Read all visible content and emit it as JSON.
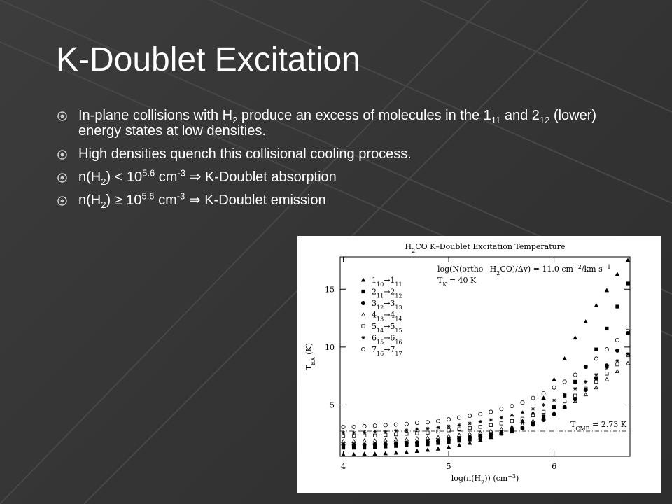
{
  "slide": {
    "title": "K-Doublet Excitation",
    "bullets": [
      [
        {
          "text": "In-plane collisions with H"
        },
        {
          "text": "2",
          "style": "sub"
        },
        {
          "text": " produce an excess of molecules in the 1"
        },
        {
          "text": "11",
          "style": "sub"
        },
        {
          "text": " and 2"
        },
        {
          "text": "12",
          "style": "sub"
        },
        {
          "text": " (lower) energy states at low densities."
        }
      ],
      [
        {
          "text": "High densities quench this collisional cooling process."
        }
      ],
      [
        {
          "text": "n(H"
        },
        {
          "text": "2",
          "style": "sub"
        },
        {
          "text": ") < 10"
        },
        {
          "text": "5.6",
          "style": "sup"
        },
        {
          "text": " cm"
        },
        {
          "text": "-3",
          "style": "sup"
        },
        {
          "text": " ⇒ K-Doublet absorption"
        }
      ],
      [
        {
          "text": "n(H"
        },
        {
          "text": "2",
          "style": "sub"
        },
        {
          "text": ") ≥ 10"
        },
        {
          "text": "5.6",
          "style": "sup"
        },
        {
          "text": " cm"
        },
        {
          "text": "-3",
          "style": "sup"
        },
        {
          "text": " ⇒ K-Doublet emission"
        }
      ]
    ]
  },
  "chart_data": {
    "type": "scatter",
    "title": [
      {
        "text": "H"
      },
      {
        "text": "2",
        "style": "sub"
      },
      {
        "text": "CO K–Doublet Excitation Temperature"
      }
    ],
    "annotations": [
      [
        {
          "text": "log(N(ortho−H"
        },
        {
          "text": "2",
          "style": "sub"
        },
        {
          "text": "CO)/Δv) = 11.0 cm"
        },
        {
          "text": "−2",
          "style": "sup"
        },
        {
          "text": "/km s"
        },
        {
          "text": "−1",
          "style": "sup"
        }
      ],
      [
        {
          "text": "T"
        },
        {
          "text": "K",
          "style": "sub"
        },
        {
          "text": " = 40 K"
        }
      ]
    ],
    "reference_line": {
      "value": 2.73,
      "label": [
        {
          "text": "T"
        },
        {
          "text": "CMB",
          "style": "sub"
        },
        {
          "text": " = 2.73 K"
        }
      ]
    },
    "xlabel": [
      {
        "text": "log(n(H"
      },
      {
        "text": "2",
        "style": "sub"
      },
      {
        "text": ")) (cm"
      },
      {
        "text": "−3",
        "style": "sup"
      },
      {
        "text": ")"
      }
    ],
    "ylabel": [
      {
        "text": "T"
      },
      {
        "text": "EX",
        "style": "sub"
      },
      {
        "text": " (K)"
      }
    ],
    "xlim": [
      3.97,
      6.72
    ],
    "ylim": [
      0.55,
      17.8
    ],
    "xticks": [
      4,
      5,
      6
    ],
    "yticks": [
      5,
      10,
      15
    ],
    "x": [
      4.0,
      4.1,
      4.2,
      4.3,
      4.4,
      4.5,
      4.6,
      4.7,
      4.8,
      4.9,
      5.0,
      5.1,
      5.2,
      5.3,
      5.4,
      5.5,
      5.6,
      5.7,
      5.8,
      5.9,
      6.0,
      6.1,
      6.2,
      6.3,
      6.4,
      6.5,
      6.6,
      6.7
    ],
    "series": [
      {
        "name": [
          {
            "text": "1"
          },
          {
            "text": "10",
            "style": "sub"
          },
          {
            "text": "→1"
          },
          {
            "text": "11",
            "style": "sub"
          }
        ],
        "marker": "triangle-filled",
        "color": "#000000",
        "values": [
          0.7,
          0.7,
          0.75,
          0.75,
          0.8,
          0.85,
          0.9,
          1.0,
          1.1,
          1.2,
          1.35,
          1.5,
          1.7,
          1.95,
          2.2,
          2.6,
          3.0,
          3.6,
          4.3,
          5.6,
          7.2,
          9.0,
          10.8,
          12.2,
          13.6,
          14.9,
          16.3,
          17.5
        ]
      },
      {
        "name": [
          {
            "text": "2"
          },
          {
            "text": "11",
            "style": "sub"
          },
          {
            "text": "→2"
          },
          {
            "text": "12",
            "style": "sub"
          }
        ],
        "marker": "square-filled",
        "color": "#000000",
        "values": [
          1.3,
          1.3,
          1.3,
          1.35,
          1.4,
          1.45,
          1.5,
          1.55,
          1.6,
          1.7,
          1.8,
          1.9,
          2.0,
          2.15,
          2.3,
          2.5,
          2.7,
          3.0,
          3.4,
          4.0,
          4.8,
          5.8,
          7.0,
          8.3,
          9.8,
          11.6,
          13.5,
          15.5
        ]
      },
      {
        "name": [
          {
            "text": "3"
          },
          {
            "text": "12",
            "style": "sub"
          },
          {
            "text": "→3"
          },
          {
            "text": "13",
            "style": "sub"
          }
        ],
        "marker": "circle-filled",
        "color": "#000000",
        "values": [
          1.55,
          1.55,
          1.55,
          1.6,
          1.6,
          1.65,
          1.7,
          1.75,
          1.8,
          1.9,
          2.0,
          2.1,
          2.2,
          2.3,
          2.45,
          2.6,
          2.8,
          3.0,
          3.3,
          3.7,
          4.2,
          4.8,
          5.5,
          6.3,
          7.3,
          8.4,
          9.7,
          11.2
        ]
      },
      {
        "name": [
          {
            "text": "4"
          },
          {
            "text": "13",
            "style": "sub"
          },
          {
            "text": "→4"
          },
          {
            "text": "14",
            "style": "sub"
          }
        ],
        "marker": "triangle-open",
        "color": "#000000",
        "values": [
          1.85,
          1.85,
          1.9,
          1.9,
          1.95,
          2.0,
          2.0,
          2.1,
          2.15,
          2.2,
          2.3,
          2.4,
          2.5,
          2.6,
          2.75,
          2.9,
          3.1,
          3.3,
          3.6,
          3.9,
          4.3,
          4.8,
          5.3,
          5.9,
          6.5,
          7.2,
          7.9,
          8.6
        ]
      },
      {
        "name": [
          {
            "text": "5"
          },
          {
            "text": "14",
            "style": "sub"
          },
          {
            "text": "→5"
          },
          {
            "text": "15",
            "style": "sub"
          }
        ],
        "marker": "square-open",
        "color": "#000000",
        "values": [
          2.3,
          2.3,
          2.35,
          2.35,
          2.4,
          2.45,
          2.5,
          2.55,
          2.6,
          2.7,
          2.8,
          2.9,
          3.0,
          3.1,
          3.25,
          3.4,
          3.6,
          3.8,
          4.1,
          4.4,
          4.8,
          5.3,
          5.8,
          6.4,
          7.0,
          7.7,
          8.5,
          9.3
        ]
      },
      {
        "name": [
          {
            "text": "6"
          },
          {
            "text": "15",
            "style": "sub"
          },
          {
            "text": "→6"
          },
          {
            "text": "16",
            "style": "sub"
          }
        ],
        "marker": "star",
        "color": "#000000",
        "values": [
          2.6,
          2.6,
          2.65,
          2.7,
          2.7,
          2.75,
          2.8,
          2.9,
          2.95,
          3.05,
          3.15,
          3.25,
          3.4,
          3.55,
          3.7,
          3.9,
          4.1,
          4.35,
          4.65,
          5.0,
          5.4,
          5.9,
          6.4,
          7.0,
          7.6,
          8.2,
          8.8,
          9.4
        ]
      },
      {
        "name": [
          {
            "text": "7"
          },
          {
            "text": "16",
            "style": "sub"
          },
          {
            "text": "→7"
          },
          {
            "text": "17",
            "style": "sub"
          }
        ],
        "marker": "circle-open",
        "color": "#000000",
        "values": [
          3.1,
          3.1,
          3.15,
          3.2,
          3.25,
          3.3,
          3.35,
          3.45,
          3.5,
          3.6,
          3.75,
          3.9,
          4.05,
          4.2,
          4.4,
          4.65,
          4.9,
          5.2,
          5.6,
          6.0,
          6.5,
          7.0,
          7.6,
          8.3,
          9.0,
          9.8,
          10.6,
          11.4
        ]
      }
    ]
  }
}
